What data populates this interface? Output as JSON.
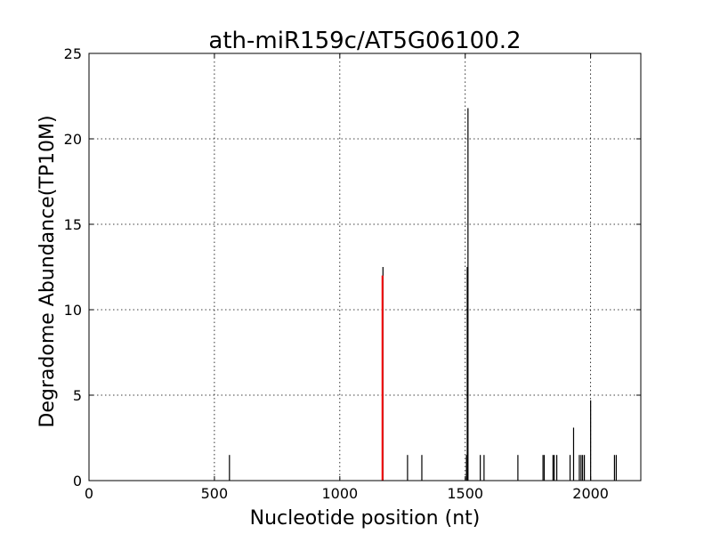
{
  "chart_data": {
    "type": "bar",
    "title": "ath-miR159c/AT5G06100.2",
    "xlabel": "Nucleotide position (nt)",
    "ylabel": "Degradome Abundance(TP10M)",
    "xlim": [
      0,
      2200
    ],
    "ylim": [
      0,
      25
    ],
    "xticks": [
      0,
      500,
      1000,
      1500,
      2000
    ],
    "yticks": [
      0,
      5,
      10,
      15,
      20,
      25
    ],
    "grid": true,
    "colors": {
      "default": "#000000",
      "highlight": "#ff0000"
    },
    "series": [
      {
        "values": [
          {
            "x": 560,
            "y": 1.5
          },
          {
            "x": 1172,
            "y": 12.5
          },
          {
            "x": 1270,
            "y": 1.5
          },
          {
            "x": 1327,
            "y": 1.5
          },
          {
            "x": 1505,
            "y": 1.5
          },
          {
            "x": 1508,
            "y": 12.5
          },
          {
            "x": 1511,
            "y": 21.8
          },
          {
            "x": 1560,
            "y": 1.5
          },
          {
            "x": 1575,
            "y": 1.5
          },
          {
            "x": 1710,
            "y": 1.5
          },
          {
            "x": 1810,
            "y": 1.5
          },
          {
            "x": 1815,
            "y": 1.5
          },
          {
            "x": 1850,
            "y": 1.5
          },
          {
            "x": 1855,
            "y": 1.5
          },
          {
            "x": 1865,
            "y": 1.5
          },
          {
            "x": 1918,
            "y": 1.5
          },
          {
            "x": 1932,
            "y": 3.1
          },
          {
            "x": 1955,
            "y": 1.5
          },
          {
            "x": 1962,
            "y": 1.5
          },
          {
            "x": 1968,
            "y": 1.5
          },
          {
            "x": 1975,
            "y": 1.5
          },
          {
            "x": 2000,
            "y": 4.7
          },
          {
            "x": 2095,
            "y": 1.5
          },
          {
            "x": 2102,
            "y": 1.5
          }
        ]
      },
      {
        "highlight": true,
        "values": [
          {
            "x": 1170,
            "y": 12.0
          }
        ]
      }
    ]
  }
}
